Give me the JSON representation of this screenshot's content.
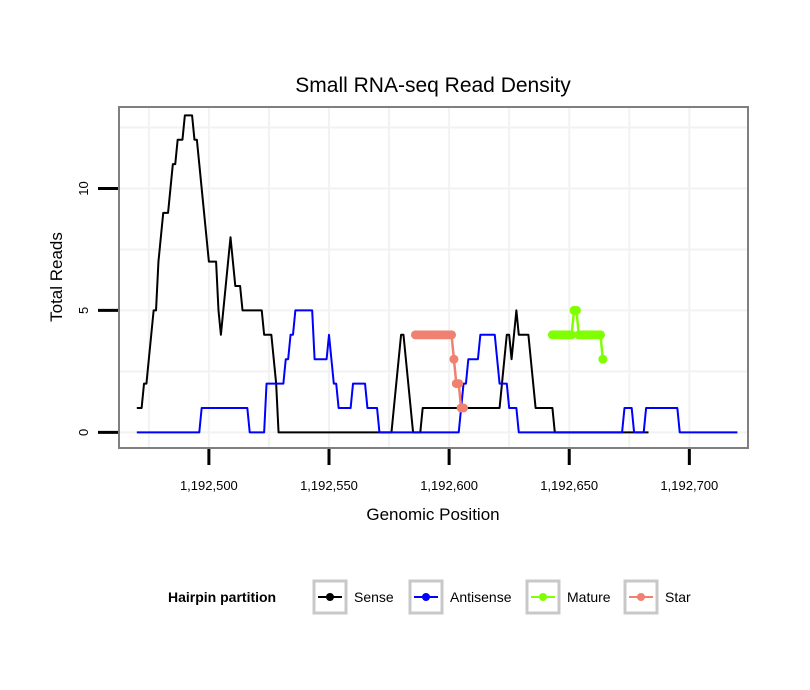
{
  "chart_data": {
    "type": "line",
    "title": "Small RNA-seq Read Density",
    "xlabel": "Genomic Position",
    "ylabel": "Total Reads",
    "xlim": [
      1192463,
      1192724
    ],
    "ylim": [
      -0.6,
      13.3
    ],
    "x_ticks": [
      1192500,
      1192550,
      1192600,
      1192650,
      1192700
    ],
    "x_tick_labels": [
      "1,192,500",
      "1,192,550",
      "1,192,600",
      "1,192,650",
      "1,192,700"
    ],
    "y_ticks": [
      0,
      5,
      10
    ],
    "y_tick_labels": [
      "0",
      "5",
      "10"
    ],
    "grid": true,
    "legend": {
      "title": "Hairpin partition",
      "position": "bottom",
      "entries": [
        "Sense",
        "Antisense",
        "Mature",
        "Star"
      ]
    },
    "series": [
      {
        "name": "Sense",
        "color": "#000000",
        "kind": "line",
        "points": [
          [
            1192470,
            1
          ],
          [
            1192472,
            1
          ],
          [
            1192473,
            2
          ],
          [
            1192474,
            2
          ],
          [
            1192475,
            3
          ],
          [
            1192476,
            4
          ],
          [
            1192477,
            5
          ],
          [
            1192478,
            5
          ],
          [
            1192479,
            7
          ],
          [
            1192480,
            8
          ],
          [
            1192481,
            9
          ],
          [
            1192483,
            9
          ],
          [
            1192484,
            10
          ],
          [
            1192485,
            11
          ],
          [
            1192486,
            11
          ],
          [
            1192487,
            12
          ],
          [
            1192488,
            12
          ],
          [
            1192489,
            12
          ],
          [
            1192490,
            13
          ],
          [
            1192493,
            13
          ],
          [
            1192494,
            12
          ],
          [
            1192495,
            12
          ],
          [
            1192496,
            11
          ],
          [
            1192497,
            10
          ],
          [
            1192498,
            9
          ],
          [
            1192499,
            8
          ],
          [
            1192500,
            7
          ],
          [
            1192503,
            7
          ],
          [
            1192504,
            5
          ],
          [
            1192505,
            4
          ],
          [
            1192506,
            5
          ],
          [
            1192507,
            6
          ],
          [
            1192508,
            7
          ],
          [
            1192509,
            8
          ],
          [
            1192510,
            7
          ],
          [
            1192511,
            6
          ],
          [
            1192513,
            6
          ],
          [
            1192514,
            5
          ],
          [
            1192522,
            5
          ],
          [
            1192523,
            4
          ],
          [
            1192526,
            4
          ],
          [
            1192527,
            3
          ],
          [
            1192528,
            2
          ],
          [
            1192529,
            0
          ],
          [
            1192576,
            0
          ],
          [
            1192577,
            1
          ],
          [
            1192578,
            2
          ],
          [
            1192579,
            3
          ],
          [
            1192580,
            4
          ],
          [
            1192581,
            4
          ],
          [
            1192582,
            3
          ],
          [
            1192583,
            2
          ],
          [
            1192584,
            1
          ],
          [
            1192585,
            0
          ],
          [
            1192588,
            0
          ],
          [
            1192589,
            1
          ],
          [
            1192621,
            1
          ],
          [
            1192622,
            2
          ],
          [
            1192623,
            3
          ],
          [
            1192624,
            4
          ],
          [
            1192625,
            4
          ],
          [
            1192626,
            3
          ],
          [
            1192627,
            4
          ],
          [
            1192628,
            5
          ],
          [
            1192629,
            4
          ],
          [
            1192633,
            4
          ],
          [
            1192634,
            3
          ],
          [
            1192635,
            2
          ],
          [
            1192636,
            1
          ],
          [
            1192643,
            1
          ],
          [
            1192644,
            0
          ],
          [
            1192683,
            0
          ]
        ]
      },
      {
        "name": "Antisense",
        "color": "#0000ff",
        "kind": "line",
        "points": [
          [
            1192470,
            0
          ],
          [
            1192496,
            0
          ],
          [
            1192497,
            1
          ],
          [
            1192516,
            1
          ],
          [
            1192517,
            0
          ],
          [
            1192523,
            0
          ],
          [
            1192524,
            2
          ],
          [
            1192531,
            2
          ],
          [
            1192532,
            3
          ],
          [
            1192533,
            3
          ],
          [
            1192534,
            4
          ],
          [
            1192535,
            4
          ],
          [
            1192536,
            5
          ],
          [
            1192543,
            5
          ],
          [
            1192544,
            3
          ],
          [
            1192549,
            3
          ],
          [
            1192550,
            4
          ],
          [
            1192551,
            3
          ],
          [
            1192552,
            2
          ],
          [
            1192553,
            2
          ],
          [
            1192554,
            1
          ],
          [
            1192559,
            1
          ],
          [
            1192560,
            2
          ],
          [
            1192565,
            2
          ],
          [
            1192566,
            1
          ],
          [
            1192570,
            1
          ],
          [
            1192571,
            0
          ],
          [
            1192604,
            0
          ],
          [
            1192605,
            1
          ],
          [
            1192606,
            2
          ],
          [
            1192607,
            2
          ],
          [
            1192608,
            3
          ],
          [
            1192612,
            3
          ],
          [
            1192613,
            4
          ],
          [
            1192619,
            4
          ],
          [
            1192620,
            3
          ],
          [
            1192621,
            2
          ],
          [
            1192624,
            2
          ],
          [
            1192625,
            1
          ],
          [
            1192628,
            1
          ],
          [
            1192629,
            0
          ],
          [
            1192672,
            0
          ],
          [
            1192673,
            1
          ],
          [
            1192676,
            1
          ],
          [
            1192677,
            0
          ],
          [
            1192681,
            0
          ],
          [
            1192682,
            1
          ],
          [
            1192695,
            1
          ],
          [
            1192696,
            0
          ],
          [
            1192720,
            0
          ]
        ]
      },
      {
        "name": "Star",
        "color": "#f08070",
        "kind": "points-line",
        "points": [
          [
            1192586,
            4
          ],
          [
            1192587,
            4
          ],
          [
            1192588,
            4
          ],
          [
            1192589,
            4
          ],
          [
            1192590,
            4
          ],
          [
            1192591,
            4
          ],
          [
            1192592,
            4
          ],
          [
            1192593,
            4
          ],
          [
            1192594,
            4
          ],
          [
            1192595,
            4
          ],
          [
            1192596,
            4
          ],
          [
            1192597,
            4
          ],
          [
            1192598,
            4
          ],
          [
            1192599,
            4
          ],
          [
            1192600,
            4
          ],
          [
            1192601,
            4
          ],
          [
            1192602,
            3
          ],
          [
            1192603,
            2
          ],
          [
            1192604,
            2
          ],
          [
            1192605,
            1
          ],
          [
            1192606,
            1
          ]
        ]
      },
      {
        "name": "Mature",
        "color": "#7fff00",
        "kind": "points-line",
        "points": [
          [
            1192643,
            4
          ],
          [
            1192644,
            4
          ],
          [
            1192645,
            4
          ],
          [
            1192646,
            4
          ],
          [
            1192647,
            4
          ],
          [
            1192648,
            4
          ],
          [
            1192649,
            4
          ],
          [
            1192650,
            4
          ],
          [
            1192651,
            4
          ],
          [
            1192652,
            5
          ],
          [
            1192653,
            5
          ],
          [
            1192654,
            4
          ],
          [
            1192655,
            4
          ],
          [
            1192656,
            4
          ],
          [
            1192657,
            4
          ],
          [
            1192658,
            4
          ],
          [
            1192659,
            4
          ],
          [
            1192660,
            4
          ],
          [
            1192661,
            4
          ],
          [
            1192662,
            4
          ],
          [
            1192663,
            4
          ],
          [
            1192664,
            3
          ]
        ]
      }
    ]
  }
}
